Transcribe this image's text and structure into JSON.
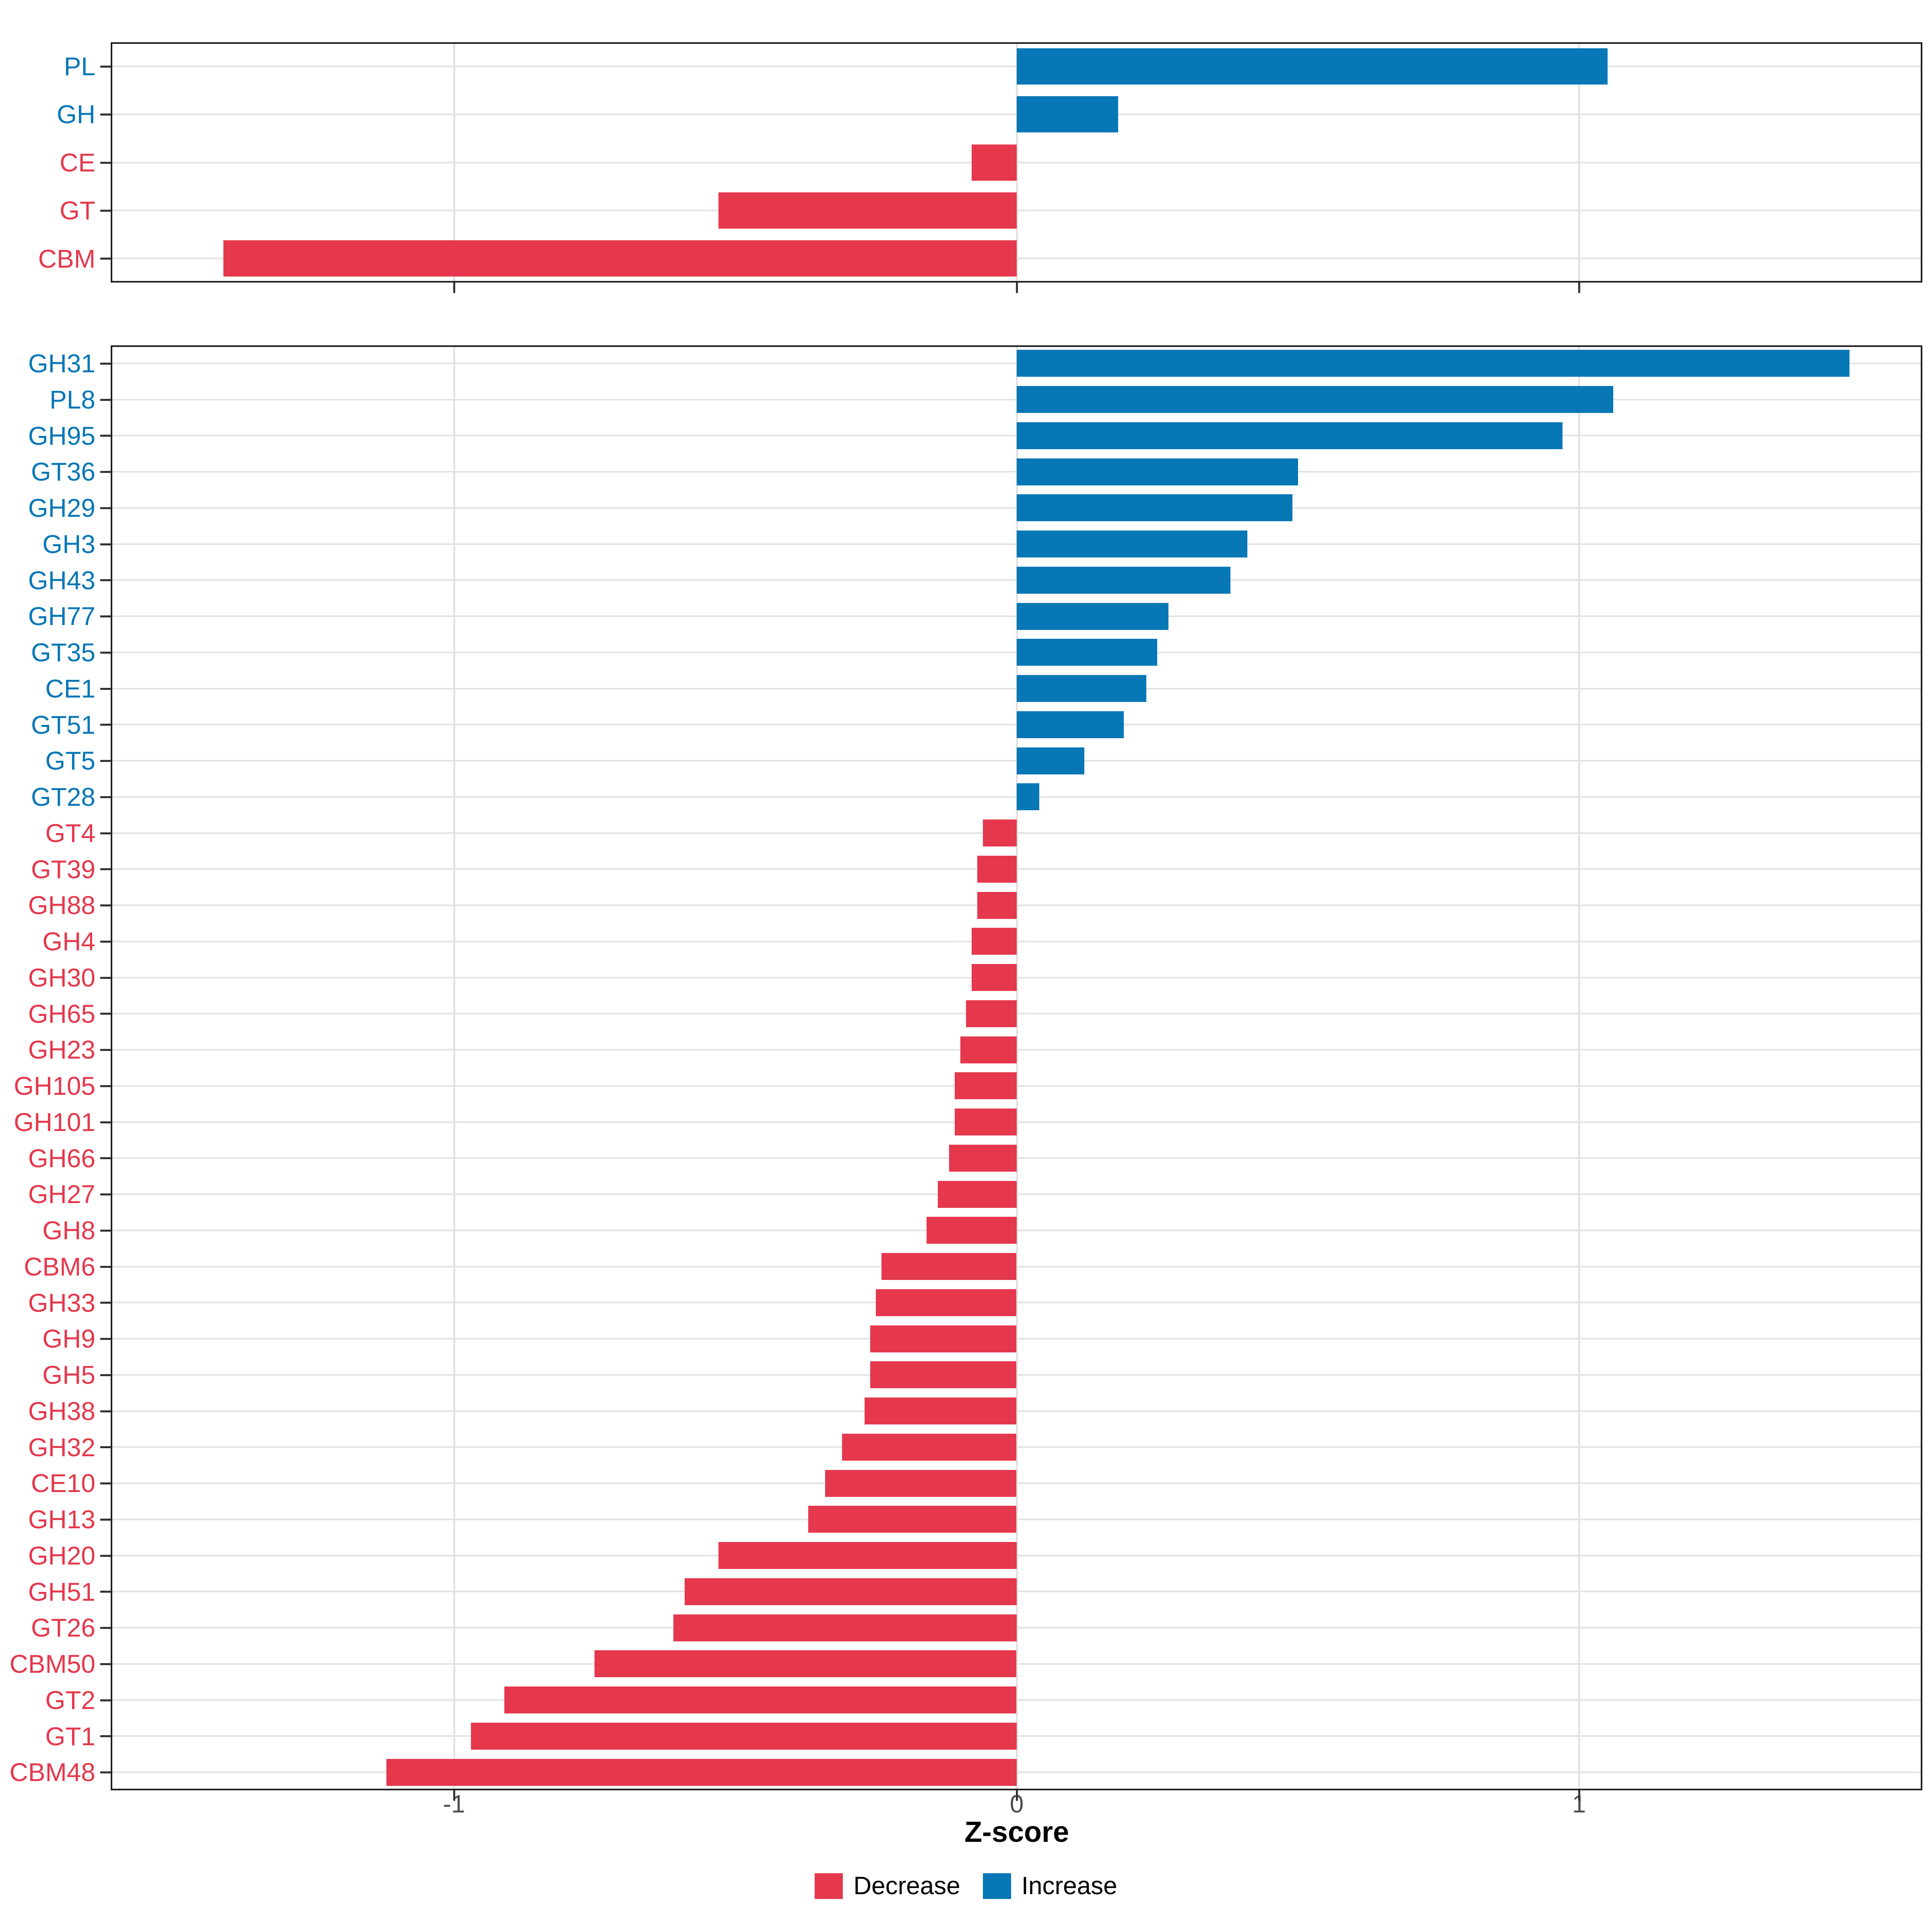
{
  "figure": {
    "xlabel": "Z-score",
    "background": "#ffffff",
    "colors": {
      "decrease": "#e5384c",
      "increase": "#0777b6",
      "grid": "#e3e3e3",
      "axis_text": "#4d4d4d",
      "panel_border": "#1f1f1f"
    },
    "x_axis": {
      "tick_labels": [
        "-1",
        "0",
        "1"
      ],
      "tick_values": [
        -1,
        0,
        1
      ]
    },
    "legend": [
      {
        "label": "Decrease",
        "color": "#e5384c"
      },
      {
        "label": "Increase",
        "color": "#0777b6"
      }
    ]
  },
  "chart_data": [
    {
      "type": "bar",
      "orientation": "horizontal",
      "panel": "top",
      "title": "",
      "xlabel": "Z-score",
      "xlim": [
        -1.61,
        1.61
      ],
      "grid": true,
      "legend_position": "bottom",
      "categories": [
        "PL",
        "GH",
        "CE",
        "GT",
        "CBM"
      ],
      "values": [
        1.05,
        0.18,
        -0.08,
        -0.53,
        -1.41
      ],
      "series": [
        {
          "name": "Increase",
          "color": "#0777b6",
          "rule": "value >= 0"
        },
        {
          "name": "Decrease",
          "color": "#e5384c",
          "rule": "value < 0"
        }
      ]
    },
    {
      "type": "bar",
      "orientation": "horizontal",
      "panel": "bottom",
      "title": "",
      "xlabel": "Z-score",
      "xlim": [
        -1.61,
        1.61
      ],
      "grid": true,
      "legend_position": "bottom",
      "categories": [
        "GH31",
        "PL8",
        "GH95",
        "GT36",
        "GH29",
        "GH3",
        "GH43",
        "GH77",
        "GT35",
        "CE1",
        "GT51",
        "GT5",
        "GT28",
        "GT4",
        "GT39",
        "GH88",
        "GH4",
        "GH30",
        "GH65",
        "GH23",
        "GH105",
        "GH101",
        "GH66",
        "GH27",
        "GH8",
        "CBM6",
        "GH33",
        "GH9",
        "GH5",
        "GH38",
        "GH32",
        "CE10",
        "GH13",
        "GH20",
        "GH51",
        "GT26",
        "CBM50",
        "GT2",
        "GT1",
        "CBM48"
      ],
      "values": [
        1.48,
        1.06,
        0.97,
        0.5,
        0.49,
        0.41,
        0.38,
        0.27,
        0.25,
        0.23,
        0.19,
        0.12,
        0.04,
        -0.06,
        -0.07,
        -0.07,
        -0.08,
        -0.08,
        -0.09,
        -0.1,
        -0.11,
        -0.11,
        -0.12,
        -0.14,
        -0.16,
        -0.24,
        -0.25,
        -0.26,
        -0.26,
        -0.27,
        -0.31,
        -0.34,
        -0.37,
        -0.53,
        -0.59,
        -0.61,
        -0.75,
        -0.91,
        -0.97,
        -1.12
      ],
      "series": [
        {
          "name": "Increase",
          "color": "#0777b6",
          "rule": "value >= 0"
        },
        {
          "name": "Decrease",
          "color": "#e5384c",
          "rule": "value < 0"
        }
      ]
    }
  ]
}
